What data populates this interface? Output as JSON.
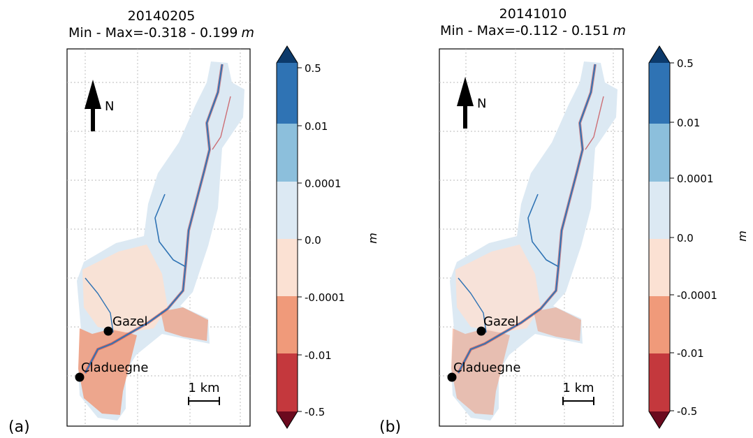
{
  "panels": [
    {
      "id": "a",
      "panel_label": "(a)",
      "title_date": "20140205",
      "title_range_prefix": "Min - Max=",
      "title_range_values": "-0.318 - 0.199",
      "title_unit": "m",
      "north_label": "N",
      "scale_label": "1 km",
      "places": [
        {
          "name": "Gazel"
        },
        {
          "name": "Claduegne"
        }
      ],
      "colorbar": {
        "ticks": [
          "0.5",
          "0.01",
          "0.0001",
          "0.0",
          "-0.0001",
          "-0.01",
          "-0.5"
        ],
        "unit_label": "m"
      }
    },
    {
      "id": "b",
      "panel_label": "(b)",
      "title_date": "20141010",
      "title_range_prefix": "Min - Max=",
      "title_range_values": "-0.112 - 0.151",
      "title_unit": "m",
      "north_label": "N",
      "scale_label": "1 km",
      "places": [
        {
          "name": "Gazel"
        },
        {
          "name": "Claduegne"
        }
      ],
      "colorbar": {
        "ticks": [
          "0.5",
          "0.01",
          "0.0001",
          "0.0",
          "-0.0001",
          "-0.01",
          "-0.5"
        ],
        "unit_label": "m"
      }
    }
  ],
  "colormap": {
    "bins": [
      {
        "range": "0.01 – 0.5",
        "color": "#2f73b4"
      },
      {
        "range": "0.0001 – 0.01",
        "color": "#8cbfdc"
      },
      {
        "range": "0.0 – 0.0001",
        "color": "#dce9f3"
      },
      {
        "range": "-0.0001 – 0.0",
        "color": "#fbe1d3"
      },
      {
        "range": "-0.01 – -0.0001",
        "color": "#f09a7a"
      },
      {
        "range": "-0.5 – -0.01",
        "color": "#c4383d"
      }
    ],
    "over_color": "#0c3a6b",
    "under_color": "#6b0a1e",
    "catchment_fill": "#dce9f3",
    "channel_color": "#2f73b4"
  }
}
